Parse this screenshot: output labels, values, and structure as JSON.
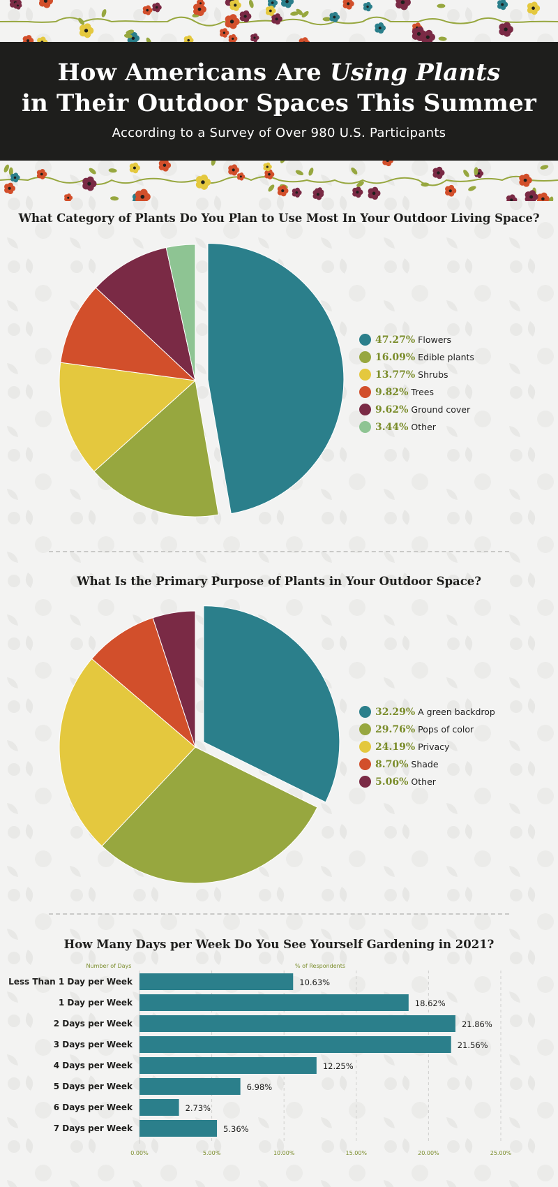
{
  "header": {
    "title_line1_pre": "How Americans Are ",
    "title_line1_em": "Using Plants",
    "title_line2": "in Their Outdoor Spaces This Summer",
    "subtitle": "According to a Survey of Over 980 U.S. Participants"
  },
  "colors": {
    "teal": "#2b7f8b",
    "olive": "#97a73f",
    "yellow": "#e4c83e",
    "orange": "#d24f2b",
    "maroon": "#7a2a45",
    "mint": "#8ec493",
    "header_bg": "#1e1e1c",
    "percent_text": "#7a8c2a"
  },
  "chart_data": [
    {
      "type": "pie",
      "title": "What Category of Plants Do You Plan to Use Most In Your Outdoor Living Space?",
      "legend_position": "right",
      "slices": [
        {
          "label": "Flowers",
          "display": "47.27%",
          "value": 47.27,
          "color": "#2b7f8b"
        },
        {
          "label": "Edible plants",
          "display": "16.09%",
          "value": 16.09,
          "color": "#97a73f"
        },
        {
          "label": "Shrubs",
          "display": "13.77%",
          "value": 13.77,
          "color": "#e4c83e"
        },
        {
          "label": "Trees",
          "display": "9.82%",
          "value": 9.82,
          "color": "#d24f2b"
        },
        {
          "label": "Ground cover",
          "display": "9.62%",
          "value": 9.62,
          "color": "#7a2a45"
        },
        {
          "label": "Other",
          "display": "3.44%",
          "value": 3.44,
          "color": "#8ec493"
        }
      ]
    },
    {
      "type": "pie",
      "title": "What Is the Primary Purpose of Plants in Your Outdoor Space?",
      "legend_position": "right",
      "slices": [
        {
          "label": "A green backdrop",
          "display": "32.29%",
          "value": 32.29,
          "color": "#2b7f8b"
        },
        {
          "label": "Pops of color",
          "display": "29.76%",
          "value": 29.76,
          "color": "#97a73f"
        },
        {
          "label": "Privacy",
          "display": "24.19%",
          "value": 24.19,
          "color": "#e4c83e"
        },
        {
          "label": "Shade",
          "display": "8.70%",
          "value": 8.7,
          "color": "#d24f2b"
        },
        {
          "label": "Other",
          "display": "5.06%",
          "value": 5.06,
          "color": "#7a2a45"
        }
      ]
    },
    {
      "type": "bar",
      "orientation": "horizontal",
      "title": "How Many Days per Week Do You See Yourself Gardening in 2021?",
      "ylabel": "Number of Days",
      "xlabel": "% of Respondents",
      "xlim": [
        0,
        25
      ],
      "grid": true,
      "bar_color": "#2b7f8b",
      "categories": [
        "Less Than 1 Day per Week",
        "1 Day per Week",
        "2 Days per Week",
        "3 Days per Week",
        "4 Days per Week",
        "5 Days per Week",
        "6 Days per Week",
        "7 Days per Week"
      ],
      "values": [
        10.63,
        18.62,
        21.86,
        21.56,
        12.25,
        6.98,
        2.73,
        5.36
      ],
      "value_labels": [
        "10.63%",
        "18.62%",
        "21.86%",
        "21.56%",
        "12.25%",
        "6.98%",
        "2.73%",
        "5.36%"
      ],
      "ticks": [
        0,
        5,
        10,
        15,
        20,
        25
      ],
      "tick_labels": [
        "0.00%",
        "5.00%",
        "10.00%",
        "15.00%",
        "20.00%",
        "25.00%"
      ]
    }
  ]
}
